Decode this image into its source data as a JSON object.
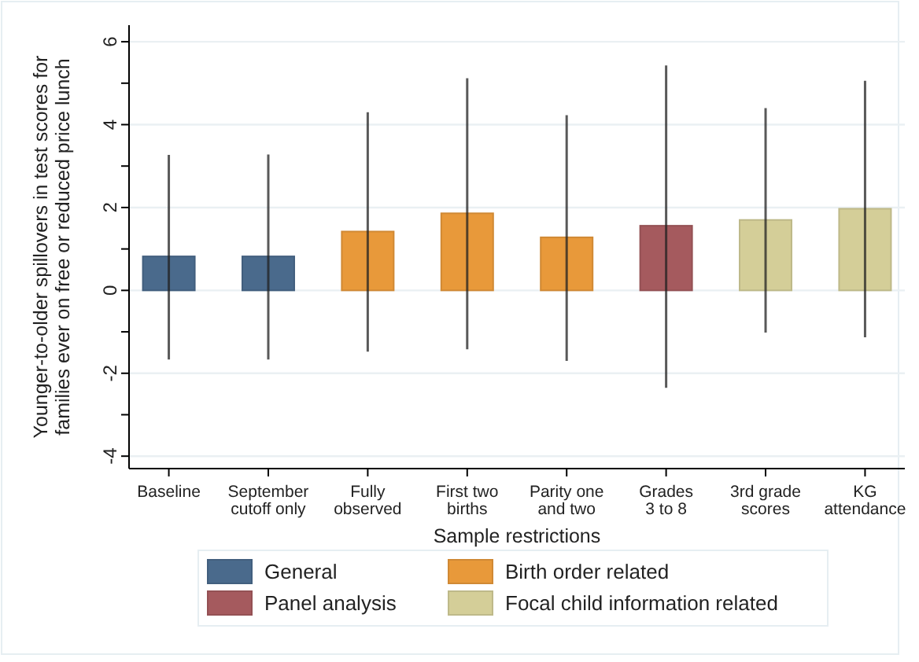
{
  "chart_data": {
    "type": "bar",
    "xlabel": "Sample restrictions",
    "ylabel": "Younger-to-older spillovers in test scores for families ever on free or reduced price lunch",
    "categories": [
      "Baseline",
      "September cutoff only",
      "Fully observed",
      "First two births",
      "Parity one and two",
      "Grades 3 to 8",
      "3rd grade scores",
      "KG attendance"
    ],
    "series": [
      {
        "name": "General",
        "color": "#4a6a8c",
        "values": [
          0.82,
          0.82,
          null,
          null,
          null,
          null,
          null,
          null
        ],
        "errors": [
          [
            -1.67,
            3.27
          ],
          [
            -1.67,
            3.28
          ],
          null,
          null,
          null,
          null,
          null,
          null
        ]
      },
      {
        "name": "Panel analysis",
        "color": "#a55a5e",
        "values": [
          null,
          null,
          null,
          null,
          null,
          1.56,
          null,
          null
        ],
        "errors": [
          null,
          null,
          null,
          null,
          null,
          [
            -2.35,
            5.43
          ],
          null,
          null
        ]
      },
      {
        "name": "Birth order related",
        "color": "#e8993a",
        "values": [
          null,
          null,
          1.42,
          1.86,
          1.28,
          null,
          null,
          null
        ],
        "errors": [
          null,
          null,
          [
            -1.48,
            4.3
          ],
          [
            -1.42,
            5.12
          ],
          [
            -1.7,
            4.23
          ],
          null,
          null,
          null
        ]
      },
      {
        "name": "Focal child information related",
        "color": "#d4ce98",
        "values": [
          null,
          null,
          null,
          null,
          null,
          null,
          1.7,
          1.97
        ],
        "errors": [
          null,
          null,
          null,
          null,
          null,
          null,
          [
            -1.02,
            4.4
          ],
          [
            -1.13,
            5.06
          ]
        ]
      }
    ],
    "ylim": [
      -4.3,
      6.4
    ],
    "yticks": [
      -4,
      {
        "value": -3,
        "label": null
      },
      -2,
      {
        "value": -1,
        "label": null
      },
      0,
      {
        "value": 1,
        "label": null
      },
      2,
      {
        "value": 3,
        "label": null
      },
      4,
      {
        "value": 5,
        "label": null
      },
      6
    ],
    "grid": "y",
    "legend": "bottom"
  }
}
